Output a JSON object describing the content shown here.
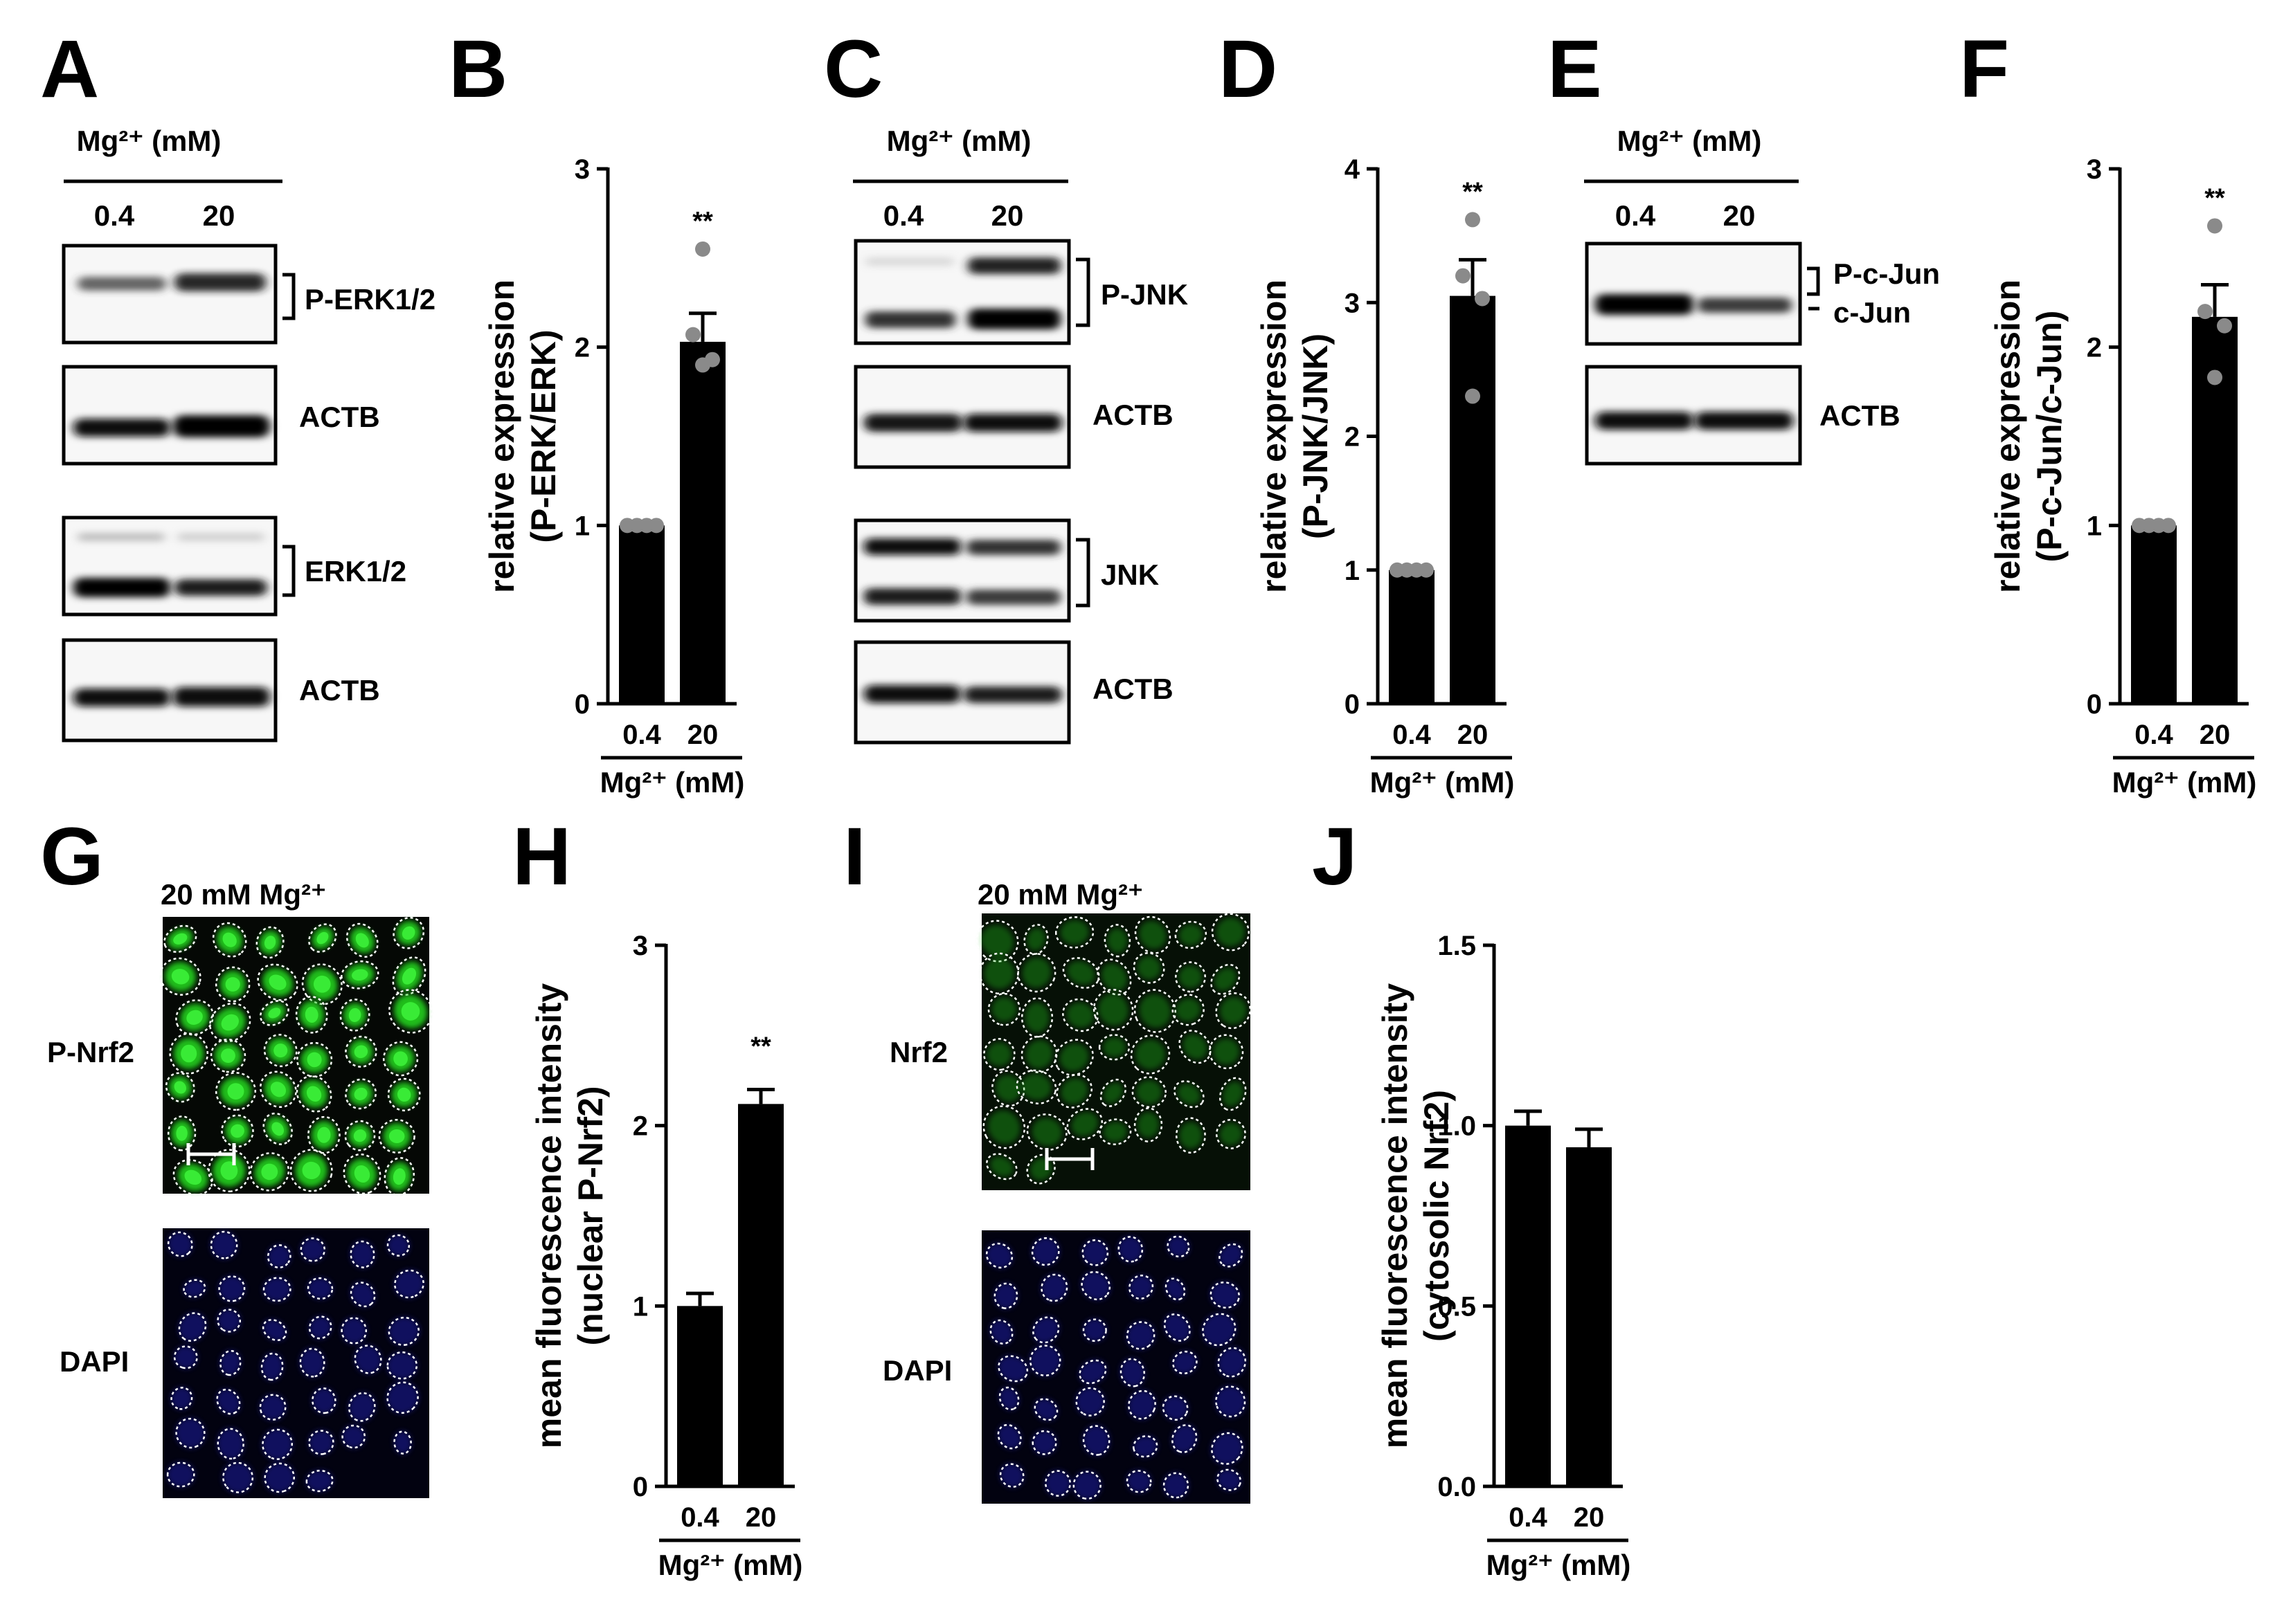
{
  "panels": {
    "A": {
      "letter": "A",
      "header": "Mg²⁺ (mM)",
      "lanes": [
        "0.4",
        "20"
      ],
      "labels": [
        "P-ERK1/2",
        "ACTB",
        "ERK1/2",
        "ACTB"
      ]
    },
    "C": {
      "letter": "C",
      "header": "Mg²⁺ (mM)",
      "lanes": [
        "0.4",
        "20"
      ],
      "labels": [
        "P-JNK",
        "ACTB",
        "JNK",
        "ACTB"
      ]
    },
    "E": {
      "letter": "E",
      "header": "Mg²⁺ (mM)",
      "lanes": [
        "0.4",
        "20"
      ],
      "labels": [
        "P-c-Jun",
        "c-Jun",
        "ACTB"
      ]
    },
    "G": {
      "letter": "G",
      "title": "20 mM Mg²⁺",
      "labels": [
        "P-Nrf2",
        "DAPI"
      ]
    },
    "I": {
      "letter": "I",
      "title": "20 mM Mg²⁺",
      "labels": [
        "Nrf2",
        "DAPI"
      ]
    }
  },
  "colors": {
    "bar": "#000000",
    "points": "#8a8a8a",
    "green_stain": "#22c81e",
    "blue_stain": "#2a2cf0"
  },
  "chart_data": [
    {
      "panel": "B",
      "type": "bar",
      "categories": [
        "0.4",
        "20"
      ],
      "values": [
        1.0,
        2.03
      ],
      "errors": [
        0,
        0.16
      ],
      "points": [
        [
          1.0,
          1.0,
          1.0,
          1.0
        ],
        [
          2.55,
          2.07,
          1.93,
          1.9
        ]
      ],
      "significance": [
        "",
        "**"
      ],
      "ylabel_lines": [
        "relative expression",
        "(P-ERK/ERK)"
      ],
      "xlabel": "Mg²⁺ (mM)",
      "ylim": [
        0,
        3
      ],
      "yticks": [
        "0",
        "1",
        "2",
        "3"
      ]
    },
    {
      "panel": "D",
      "type": "bar",
      "categories": [
        "0.4",
        "20"
      ],
      "values": [
        1.0,
        3.05
      ],
      "errors": [
        0,
        0.27
      ],
      "points": [
        [
          1.0,
          1.0,
          1.0,
          1.0
        ],
        [
          3.62,
          3.2,
          3.03,
          2.3
        ]
      ],
      "significance": [
        "",
        "**"
      ],
      "ylabel_lines": [
        "relative expression",
        "(P-JNK/JNK)"
      ],
      "xlabel": "Mg²⁺ (mM)",
      "ylim": [
        0,
        4
      ],
      "yticks": [
        "0",
        "1",
        "2",
        "3",
        "4"
      ]
    },
    {
      "panel": "F",
      "type": "bar",
      "categories": [
        "0.4",
        "20"
      ],
      "values": [
        1.0,
        2.17
      ],
      "errors": [
        0,
        0.18
      ],
      "points": [
        [
          1.0,
          1.0,
          1.0,
          1.0
        ],
        [
          2.68,
          2.2,
          2.12,
          1.83
        ]
      ],
      "significance": [
        "",
        "**"
      ],
      "ylabel_lines": [
        "relative expression",
        "(P-c-Jun/c-Jun)"
      ],
      "xlabel": "Mg²⁺ (mM)",
      "ylim": [
        0,
        3
      ],
      "yticks": [
        "0",
        "1",
        "2",
        "3"
      ]
    },
    {
      "panel": "H",
      "type": "bar",
      "categories": [
        "0.4",
        "20"
      ],
      "values": [
        1.0,
        2.12
      ],
      "errors": [
        0.07,
        0.08
      ],
      "points": [
        [],
        []
      ],
      "significance": [
        "",
        "**"
      ],
      "ylabel_lines": [
        "mean fluorescence intensity",
        "(nuclear P-Nrf2)"
      ],
      "xlabel": "Mg²⁺ (mM)",
      "ylim": [
        0,
        3
      ],
      "yticks": [
        "0",
        "1",
        "2",
        "3"
      ]
    },
    {
      "panel": "J",
      "type": "bar",
      "categories": [
        "0.4",
        "20"
      ],
      "values": [
        1.0,
        0.94
      ],
      "errors": [
        0.04,
        0.05
      ],
      "points": [
        [],
        []
      ],
      "significance": [
        "",
        ""
      ],
      "ylabel_lines": [
        "mean fluorescence intensity",
        "(cytosolic Nrf2)"
      ],
      "xlabel": "Mg²⁺ (mM)",
      "ylim": [
        0,
        1.5
      ],
      "yticks": [
        "0.0",
        "0.5",
        "1.0",
        "1.5"
      ]
    }
  ]
}
